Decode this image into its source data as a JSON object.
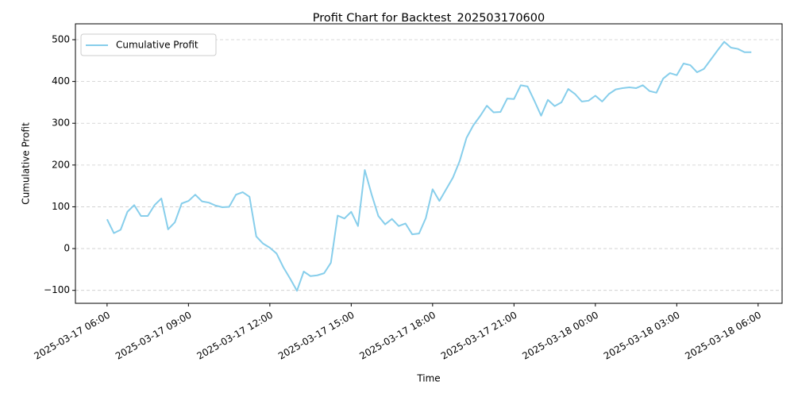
{
  "chart_data": {
    "type": "line",
    "title": "Profit Chart for Backtest_202503170600",
    "x_label": "Time",
    "y_label": "Cumulative Profit",
    "x": [
      "2025-03-17 06:00",
      "2025-03-17 06:15",
      "2025-03-17 06:30",
      "2025-03-17 06:45",
      "2025-03-17 07:00",
      "2025-03-17 07:15",
      "2025-03-17 07:30",
      "2025-03-17 07:45",
      "2025-03-17 08:00",
      "2025-03-17 08:15",
      "2025-03-17 08:30",
      "2025-03-17 08:45",
      "2025-03-17 09:00",
      "2025-03-17 09:15",
      "2025-03-17 09:30",
      "2025-03-17 09:45",
      "2025-03-17 10:00",
      "2025-03-17 10:15",
      "2025-03-17 10:30",
      "2025-03-17 10:45",
      "2025-03-17 11:00",
      "2025-03-17 11:15",
      "2025-03-17 11:30",
      "2025-03-17 11:45",
      "2025-03-17 12:00",
      "2025-03-17 12:15",
      "2025-03-17 12:30",
      "2025-03-17 12:45",
      "2025-03-17 13:00",
      "2025-03-17 13:15",
      "2025-03-17 13:30",
      "2025-03-17 13:45",
      "2025-03-17 14:00",
      "2025-03-17 14:15",
      "2025-03-17 14:30",
      "2025-03-17 14:45",
      "2025-03-17 15:00",
      "2025-03-17 15:15",
      "2025-03-17 15:30",
      "2025-03-17 15:45",
      "2025-03-17 16:00",
      "2025-03-17 16:15",
      "2025-03-17 16:30",
      "2025-03-17 16:45",
      "2025-03-17 17:00",
      "2025-03-17 17:15",
      "2025-03-17 17:30",
      "2025-03-17 17:45",
      "2025-03-17 18:00",
      "2025-03-17 18:15",
      "2025-03-17 18:30",
      "2025-03-17 18:45",
      "2025-03-17 19:00",
      "2025-03-17 19:15",
      "2025-03-17 19:30",
      "2025-03-17 19:45",
      "2025-03-17 20:00",
      "2025-03-17 20:15",
      "2025-03-17 20:30",
      "2025-03-17 20:45",
      "2025-03-17 21:00",
      "2025-03-17 21:15",
      "2025-03-17 21:30",
      "2025-03-17 21:45",
      "2025-03-17 22:00",
      "2025-03-17 22:15",
      "2025-03-17 22:30",
      "2025-03-17 22:45",
      "2025-03-17 23:00",
      "2025-03-17 23:15",
      "2025-03-17 23:30",
      "2025-03-17 23:45",
      "2025-03-18 00:00",
      "2025-03-18 00:15",
      "2025-03-18 00:30",
      "2025-03-18 00:45",
      "2025-03-18 01:00",
      "2025-03-18 01:15",
      "2025-03-18 01:30",
      "2025-03-18 01:45",
      "2025-03-18 02:00",
      "2025-03-18 02:15",
      "2025-03-18 02:30",
      "2025-03-18 02:45",
      "2025-03-18 03:00",
      "2025-03-18 03:15",
      "2025-03-18 03:30",
      "2025-03-18 03:45",
      "2025-03-18 04:00",
      "2025-03-18 04:15",
      "2025-03-18 04:30",
      "2025-03-18 04:45",
      "2025-03-18 05:00",
      "2025-03-18 05:15",
      "2025-03-18 05:30",
      "2025-03-18 05:45"
    ],
    "series": [
      {
        "name": "Cumulative Profit",
        "color": "#87ceeb",
        "values": [
          70,
          37,
          45,
          88,
          104,
          78,
          78,
          104,
          120,
          46,
          63,
          108,
          114,
          129,
          113,
          110,
          103,
          99,
          100,
          129,
          135,
          124,
          29,
          12,
          2,
          -12,
          -45,
          -72,
          -101,
          -55,
          -66,
          -64,
          -59,
          -34,
          79,
          72,
          88,
          54,
          188,
          130,
          78,
          58,
          71,
          54,
          60,
          34,
          36,
          73,
          142,
          114,
          142,
          170,
          210,
          265,
          295,
          317,
          342,
          326,
          327,
          359,
          358,
          391,
          388,
          354,
          318,
          356,
          341,
          350,
          382,
          370,
          352,
          354,
          366,
          352,
          370,
          381,
          384,
          386,
          384,
          391,
          377,
          373,
          407,
          420,
          415,
          443,
          439,
          422,
          430,
          452,
          474,
          495,
          481,
          478,
          470,
          470
        ]
      }
    ],
    "xlim": [
      "2025-03-17 04:50",
      "2025-03-18 06:53"
    ],
    "xticks": [
      "2025-03-17 06:00",
      "2025-03-17 09:00",
      "2025-03-17 12:00",
      "2025-03-17 15:00",
      "2025-03-17 18:00",
      "2025-03-17 21:00",
      "2025-03-18 00:00",
      "2025-03-18 03:00",
      "2025-03-18 06:00"
    ],
    "ylim": [
      -131,
      538
    ],
    "yticks": [
      {
        "value": -100,
        "label": "−100"
      },
      0,
      100,
      200,
      300,
      400,
      500
    ],
    "grid": "y",
    "legend": "upper left"
  }
}
